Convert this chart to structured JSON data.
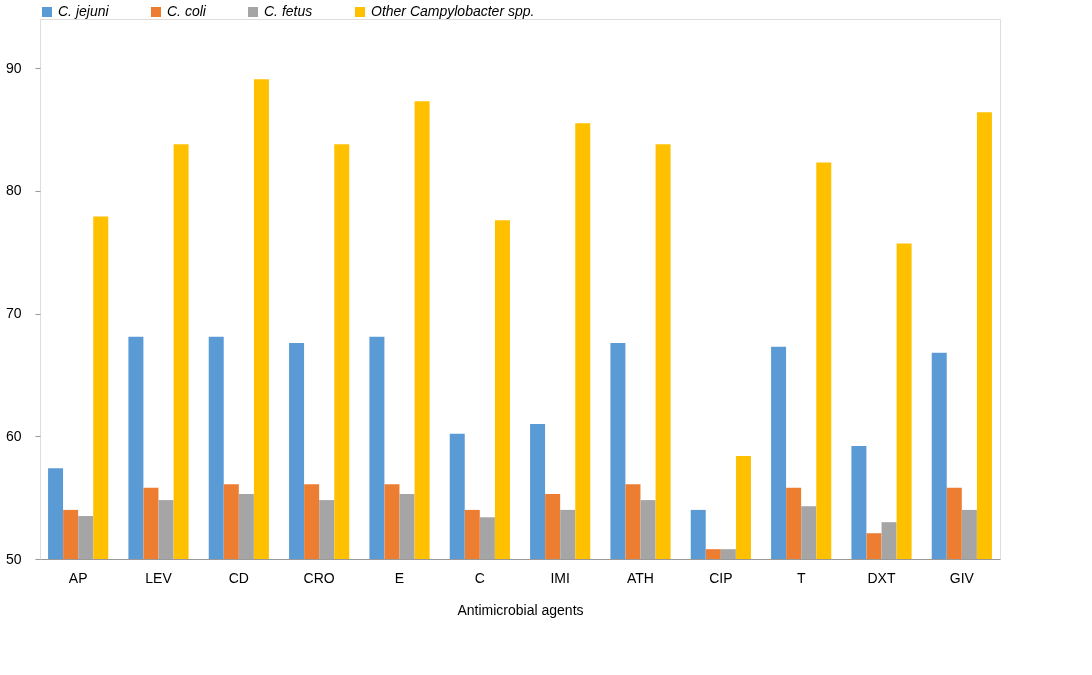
{
  "chart_data": {
    "type": "bar",
    "xlabel": "Antimicrobial agents",
    "categories": [
      "AP",
      "LEV",
      "CD",
      "CRO",
      "E",
      "C",
      "IMI",
      "ATH",
      "CIP",
      "T",
      "DXT",
      "GIV"
    ],
    "series": [
      {
        "name": "C. jejuni",
        "color": "#5b9bd5",
        "values": [
          57.4,
          68.1,
          68.1,
          67.6,
          68.1,
          60.2,
          61.0,
          67.6,
          54.0,
          67.3,
          59.2,
          66.8
        ]
      },
      {
        "name": "C. coli",
        "color": "#ed7d31",
        "values": [
          54.0,
          55.8,
          56.1,
          56.1,
          56.1,
          54.0,
          55.3,
          56.1,
          50.8,
          55.8,
          52.1,
          55.8
        ]
      },
      {
        "name": "C. fetus",
        "color": "#a5a5a5",
        "values": [
          53.5,
          54.8,
          55.3,
          54.8,
          55.3,
          53.4,
          54.0,
          54.8,
          50.8,
          54.3,
          53.0,
          54.0
        ]
      },
      {
        "name": "Other Campylobacter spp.",
        "color": "#ffc000",
        "values": [
          77.9,
          83.8,
          89.1,
          83.8,
          87.3,
          77.6,
          85.5,
          83.8,
          58.4,
          82.3,
          75.7,
          86.4
        ]
      }
    ],
    "ylim": [
      50,
      94
    ],
    "yticks": [
      50,
      60,
      70,
      80,
      90
    ],
    "grid": false,
    "legend": "top"
  }
}
